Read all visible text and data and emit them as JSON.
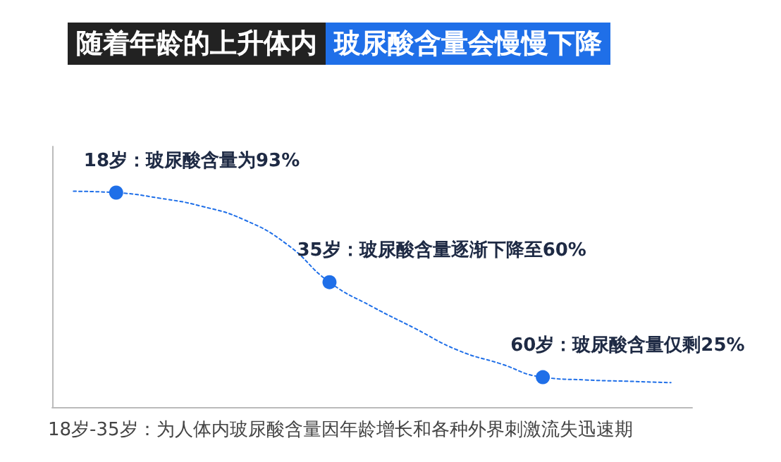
{
  "chart_data": {
    "type": "line",
    "title": "随着年龄的上升体内",
    "subtitle": "玻尿酸含量会慢慢下降",
    "categories": [
      null,
      null,
      null,
      null,
      null,
      null,
      null,
      null,
      null,
      null,
      null,
      null,
      null,
      null,
      null
    ],
    "series": [
      {
        "color": "#1f6fe8",
        "values": [
          93.5,
          93,
          91,
          88,
          83,
          74,
          60,
          51,
          43,
          35,
          30,
          25,
          24,
          23.5,
          23
        ],
        "value_labels": [
          null,
          "18岁：玻尿酸含量为93%",
          null,
          null,
          null,
          null,
          "35岁：玻尿酸含量逐渐下降至60%",
          null,
          null,
          null,
          null,
          "60岁：玻尿酸含量仅剩25%",
          null,
          null,
          null
        ]
      }
    ],
    "ylim": [
      14,
      110
    ],
    "tick_labels": false,
    "grid": false,
    "line_style": "dotted",
    "annotations": [
      "18岁-35岁：为人体内玻尿酸含量因年龄增长和各种外界刺激流失迅速期"
    ]
  }
}
